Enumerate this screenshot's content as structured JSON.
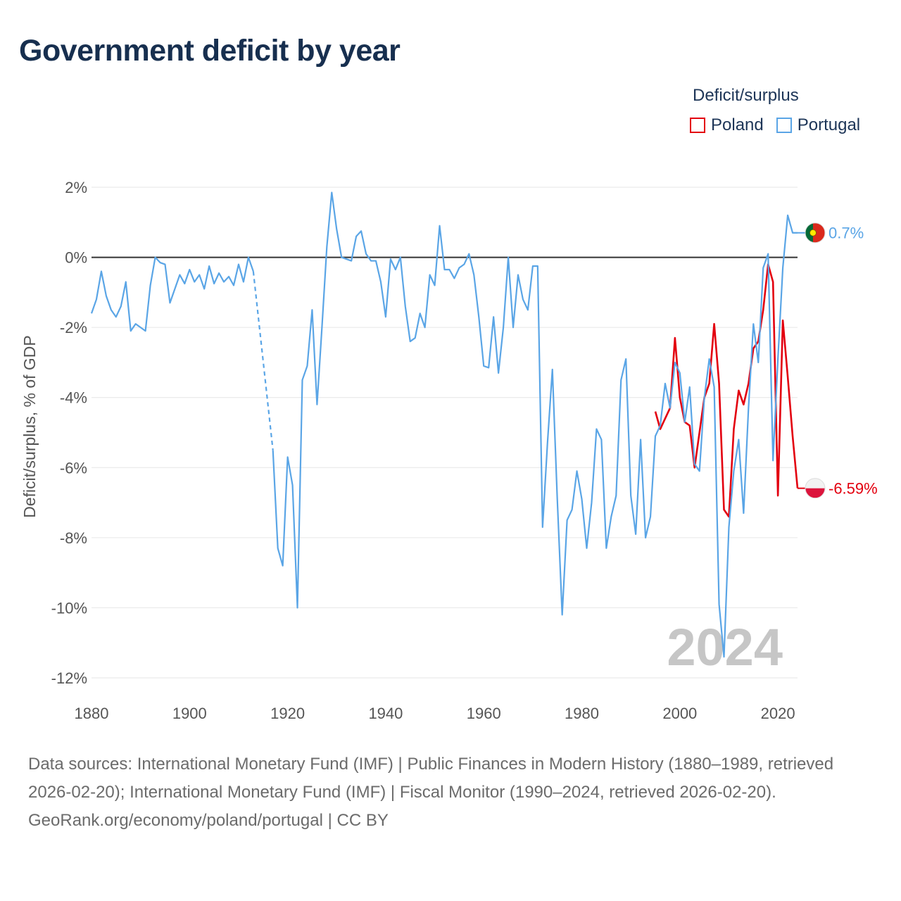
{
  "chart_data": {
    "type": "line",
    "title": "Government deficit by year",
    "legend_title": "Deficit/surplus",
    "ylabel": "Deficit/surplus, % of GDP",
    "xlabel": "",
    "xlim": [
      1880,
      2024
    ],
    "ylim": [
      -12,
      2
    ],
    "x_ticks": [
      1880,
      1900,
      1920,
      1940,
      1960,
      1980,
      2000,
      2020
    ],
    "y_ticks": [
      2,
      0,
      -2,
      -4,
      -6,
      -8,
      -10,
      -12
    ],
    "y_tick_labels": [
      "2%",
      "0%",
      "-2%",
      "-4%",
      "-6%",
      "-8%",
      "-10%",
      "-12%"
    ],
    "year_watermark": "2024",
    "series": [
      {
        "name": "Poland",
        "color": "#e3000f",
        "end_label": "-6.59%",
        "points": [
          [
            1995,
            -4.4
          ],
          [
            1996,
            -4.9
          ],
          [
            1997,
            -4.6
          ],
          [
            1998,
            -4.3
          ],
          [
            1999,
            -2.3
          ],
          [
            2000,
            -4.0
          ],
          [
            2001,
            -4.7
          ],
          [
            2002,
            -4.8
          ],
          [
            2003,
            -6.0
          ],
          [
            2004,
            -5.0
          ],
          [
            2005,
            -4.0
          ],
          [
            2006,
            -3.6
          ],
          [
            2007,
            -1.9
          ],
          [
            2008,
            -3.6
          ],
          [
            2009,
            -7.2
          ],
          [
            2010,
            -7.4
          ],
          [
            2011,
            -4.9
          ],
          [
            2012,
            -3.8
          ],
          [
            2013,
            -4.2
          ],
          [
            2014,
            -3.6
          ],
          [
            2015,
            -2.6
          ],
          [
            2016,
            -2.4
          ],
          [
            2017,
            -1.5
          ],
          [
            2018,
            -0.2
          ],
          [
            2019,
            -0.7
          ],
          [
            2020,
            -6.8
          ],
          [
            2021,
            -1.8
          ],
          [
            2022,
            -3.4
          ],
          [
            2023,
            -5.1
          ],
          [
            2024,
            -6.59
          ]
        ]
      },
      {
        "name": "Portugal",
        "color": "#5aa5e6",
        "end_label": "0.7%",
        "gap": [
          1912,
          1917
        ],
        "points": [
          [
            1880,
            -1.6
          ],
          [
            1881,
            -1.2
          ],
          [
            1882,
            -0.4
          ],
          [
            1883,
            -1.1
          ],
          [
            1884,
            -1.5
          ],
          [
            1885,
            -1.7
          ],
          [
            1886,
            -1.4
          ],
          [
            1887,
            -0.7
          ],
          [
            1888,
            -2.1
          ],
          [
            1889,
            -1.9
          ],
          [
            1890,
            -2.0
          ],
          [
            1891,
            -2.1
          ],
          [
            1892,
            -0.8
          ],
          [
            1893,
            0.0
          ],
          [
            1894,
            -0.15
          ],
          [
            1895,
            -0.2
          ],
          [
            1896,
            -1.3
          ],
          [
            1897,
            -0.9
          ],
          [
            1898,
            -0.5
          ],
          [
            1899,
            -0.75
          ],
          [
            1900,
            -0.35
          ],
          [
            1901,
            -0.7
          ],
          [
            1902,
            -0.5
          ],
          [
            1903,
            -0.9
          ],
          [
            1904,
            -0.25
          ],
          [
            1905,
            -0.75
          ],
          [
            1906,
            -0.45
          ],
          [
            1907,
            -0.7
          ],
          [
            1908,
            -0.55
          ],
          [
            1909,
            -0.8
          ],
          [
            1910,
            -0.2
          ],
          [
            1911,
            -0.7
          ],
          [
            1912,
            0.0
          ],
          [
            1913,
            -0.4
          ],
          [
            1917,
            -5.5
          ],
          [
            1918,
            -8.3
          ],
          [
            1919,
            -8.8
          ],
          [
            1920,
            -5.7
          ],
          [
            1921,
            -6.5
          ],
          [
            1922,
            -10.0
          ],
          [
            1923,
            -3.5
          ],
          [
            1924,
            -3.1
          ],
          [
            1925,
            -1.5
          ],
          [
            1926,
            -4.2
          ],
          [
            1927,
            -2.0
          ],
          [
            1928,
            0.3
          ],
          [
            1929,
            1.85
          ],
          [
            1930,
            0.8
          ],
          [
            1931,
            0.0
          ],
          [
            1932,
            -0.05
          ],
          [
            1933,
            -0.1
          ],
          [
            1934,
            0.6
          ],
          [
            1935,
            0.75
          ],
          [
            1936,
            0.1
          ],
          [
            1937,
            -0.1
          ],
          [
            1938,
            -0.1
          ],
          [
            1939,
            -0.7
          ],
          [
            1940,
            -1.7
          ],
          [
            1941,
            -0.05
          ],
          [
            1942,
            -0.35
          ],
          [
            1943,
            0.0
          ],
          [
            1944,
            -1.4
          ],
          [
            1945,
            -2.4
          ],
          [
            1946,
            -2.3
          ],
          [
            1947,
            -1.6
          ],
          [
            1948,
            -2.0
          ],
          [
            1949,
            -0.5
          ],
          [
            1950,
            -0.8
          ],
          [
            1951,
            0.9
          ],
          [
            1952,
            -0.35
          ],
          [
            1953,
            -0.35
          ],
          [
            1954,
            -0.6
          ],
          [
            1955,
            -0.3
          ],
          [
            1956,
            -0.2
          ],
          [
            1957,
            0.1
          ],
          [
            1958,
            -0.5
          ],
          [
            1959,
            -1.7
          ],
          [
            1960,
            -3.1
          ],
          [
            1961,
            -3.15
          ],
          [
            1962,
            -1.7
          ],
          [
            1963,
            -3.3
          ],
          [
            1964,
            -2.0
          ],
          [
            1965,
            0.0
          ],
          [
            1966,
            -2.0
          ],
          [
            1967,
            -0.5
          ],
          [
            1968,
            -1.2
          ],
          [
            1969,
            -1.5
          ],
          [
            1970,
            -0.25
          ],
          [
            1971,
            -0.25
          ],
          [
            1972,
            -7.7
          ],
          [
            1973,
            -5.3
          ],
          [
            1974,
            -3.2
          ],
          [
            1975,
            -6.9
          ],
          [
            1976,
            -10.2
          ],
          [
            1977,
            -7.5
          ],
          [
            1978,
            -7.2
          ],
          [
            1979,
            -6.1
          ],
          [
            1980,
            -6.9
          ],
          [
            1981,
            -8.3
          ],
          [
            1982,
            -7.0
          ],
          [
            1983,
            -4.9
          ],
          [
            1984,
            -5.2
          ],
          [
            1985,
            -8.3
          ],
          [
            1986,
            -7.4
          ],
          [
            1987,
            -6.8
          ],
          [
            1988,
            -3.5
          ],
          [
            1989,
            -2.9
          ],
          [
            1990,
            -6.8
          ],
          [
            1991,
            -7.9
          ],
          [
            1992,
            -5.2
          ],
          [
            1993,
            -8.0
          ],
          [
            1994,
            -7.4
          ],
          [
            1995,
            -5.1
          ],
          [
            1996,
            -4.8
          ],
          [
            1997,
            -3.6
          ],
          [
            1998,
            -4.3
          ],
          [
            1999,
            -3.0
          ],
          [
            2000,
            -3.3
          ],
          [
            2001,
            -4.7
          ],
          [
            2002,
            -3.7
          ],
          [
            2003,
            -5.9
          ],
          [
            2004,
            -6.1
          ],
          [
            2005,
            -4.0
          ],
          [
            2006,
            -2.9
          ],
          [
            2007,
            -3.7
          ],
          [
            2008,
            -9.9
          ],
          [
            2009,
            -11.4
          ],
          [
            2010,
            -7.7
          ],
          [
            2011,
            -6.1
          ],
          [
            2012,
            -5.2
          ],
          [
            2013,
            -7.3
          ],
          [
            2014,
            -4.3
          ],
          [
            2015,
            -1.9
          ],
          [
            2016,
            -3.0
          ],
          [
            2017,
            -0.3
          ],
          [
            2018,
            0.1
          ],
          [
            2019,
            -5.8
          ],
          [
            2020,
            -2.9
          ],
          [
            2021,
            -0.3
          ],
          [
            2022,
            1.2
          ],
          [
            2023,
            0.7
          ],
          [
            2024,
            0.7
          ]
        ]
      }
    ]
  },
  "footer": {
    "sources": "Data sources: International Monetary Fund (IMF) | Public Finances in Modern History (1880–1989, retrieved 2026-02-20); International Monetary Fund (IMF) | Fiscal Monitor (1990–2024, retrieved 2026-02-20).",
    "credit": "GeoRank.org/economy/poland/portugal | CC BY"
  },
  "colors": {
    "title": "#172f4f",
    "poland": "#e3000f",
    "portugal": "#5aa5e6",
    "zero_line": "#333333",
    "grid": "#e6e6e6"
  }
}
